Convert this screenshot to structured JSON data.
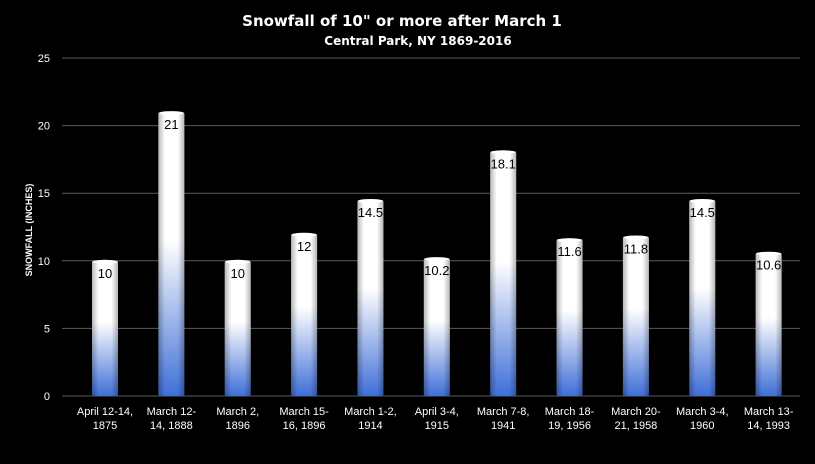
{
  "chart_data": {
    "type": "bar",
    "title": "Snowfall  of 10\" or more after March 1",
    "subtitle": "Central Park,  NY 1869-2016",
    "xlabel": "",
    "ylabel": "SNOWFALL (INCHES)",
    "ylim": [
      0,
      25
    ],
    "yticks": [
      0,
      5,
      10,
      15,
      20,
      25
    ],
    "grid": true,
    "legend": "none",
    "categories": [
      [
        "April 12-14,",
        "1875"
      ],
      [
        "March 12-",
        "14, 1888"
      ],
      [
        "March 2,",
        "1896"
      ],
      [
        "March 15-",
        "16, 1896"
      ],
      [
        "March 1-2,",
        "1914"
      ],
      [
        "April 3-4,",
        "1915"
      ],
      [
        "March 7-8,",
        "1941"
      ],
      [
        "March 18-",
        "19, 1956"
      ],
      [
        "March 20-",
        "21, 1958"
      ],
      [
        "March 3-4,",
        "1960"
      ],
      [
        "March 13-",
        "14, 1993"
      ]
    ],
    "values": [
      10,
      21,
      10,
      12,
      14.5,
      10.2,
      18.1,
      11.6,
      11.8,
      14.5,
      10.6
    ],
    "data_labels": [
      "10",
      "21",
      "10",
      "12",
      "14.5",
      "10.2",
      "18.1",
      "11.6",
      "11.8",
      "14.5",
      "10.6"
    ],
    "colors": {
      "bar_top": "#ffffff",
      "bar_bottom": "#3f6fd8",
      "background": "#000000",
      "grid": "#5a5a5a"
    }
  }
}
